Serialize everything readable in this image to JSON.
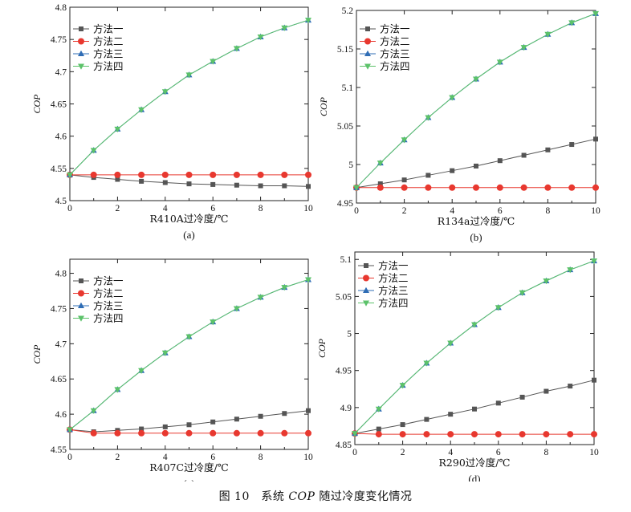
{
  "caption": {
    "prefix": "图 10　系统 ",
    "italic": "COP",
    "suffix": " 随过冷度变化情况"
  },
  "colors": {
    "m1": "#555555",
    "m2": "#e8382f",
    "m3": "#2f6db5",
    "m4": "#5cc26a",
    "axis": "#222222"
  },
  "legend_labels": [
    "方法一",
    "方法二",
    "方法三",
    "方法四"
  ],
  "chart_data": [
    {
      "type": "line",
      "panel_label": "(a)",
      "xlabel": "R410A过冷度/℃",
      "ylabel": "COP",
      "x": [
        0,
        1,
        2,
        3,
        4,
        5,
        6,
        7,
        8,
        9,
        10
      ],
      "xlim": [
        0,
        10
      ],
      "ylim": [
        4.5,
        4.8
      ],
      "xticks": [
        "0",
        "2",
        "4",
        "6",
        "8",
        "10"
      ],
      "yticks": [
        "4.5",
        "4.55",
        "4.6",
        "4.65",
        "4.7",
        "4.75",
        "4.8"
      ],
      "series": [
        {
          "name": "方法一",
          "marker": "square",
          "values": [
            4.54,
            4.536,
            4.533,
            4.53,
            4.528,
            4.526,
            4.525,
            4.524,
            4.523,
            4.523,
            4.522
          ]
        },
        {
          "name": "方法二",
          "marker": "circle",
          "values": [
            4.54,
            4.54,
            4.54,
            4.54,
            4.54,
            4.54,
            4.54,
            4.54,
            4.54,
            4.54,
            4.54
          ]
        },
        {
          "name": "方法三",
          "marker": "triangle-up",
          "values": [
            4.54,
            4.578,
            4.611,
            4.641,
            4.669,
            4.695,
            4.716,
            4.736,
            4.754,
            4.768,
            4.78
          ]
        },
        {
          "name": "方法四",
          "marker": "triangle-down",
          "values": [
            4.54,
            4.578,
            4.611,
            4.641,
            4.669,
            4.695,
            4.716,
            4.736,
            4.754,
            4.768,
            4.78
          ]
        }
      ]
    },
    {
      "type": "line",
      "panel_label": "(b)",
      "xlabel": "R134a过冷度/℃",
      "ylabel": "COP",
      "x": [
        0,
        1,
        2,
        3,
        4,
        5,
        6,
        7,
        8,
        9,
        10
      ],
      "xlim": [
        0,
        10
      ],
      "ylim": [
        4.95,
        5.2
      ],
      "xticks": [
        "0",
        "2",
        "4",
        "6",
        "8",
        "10"
      ],
      "yticks": [
        "4.95",
        "5",
        "5.05",
        "5.1",
        "5.15",
        "5.2"
      ],
      "series": [
        {
          "name": "方法一",
          "marker": "square",
          "values": [
            4.97,
            4.975,
            4.98,
            4.986,
            4.992,
            4.998,
            5.005,
            5.012,
            5.019,
            5.026,
            5.033
          ]
        },
        {
          "name": "方法二",
          "marker": "circle",
          "values": [
            4.97,
            4.97,
            4.97,
            4.97,
            4.97,
            4.97,
            4.97,
            4.97,
            4.97,
            4.97,
            4.97
          ]
        },
        {
          "name": "方法三",
          "marker": "triangle-up",
          "values": [
            4.97,
            5.002,
            5.032,
            5.061,
            5.087,
            5.111,
            5.133,
            5.152,
            5.169,
            5.184,
            5.196
          ]
        },
        {
          "name": "方法四",
          "marker": "triangle-down",
          "values": [
            4.97,
            5.002,
            5.032,
            5.061,
            5.087,
            5.111,
            5.133,
            5.152,
            5.169,
            5.184,
            5.196
          ]
        }
      ]
    },
    {
      "type": "line",
      "panel_label": "(c)",
      "xlabel": "R407C过冷度/℃",
      "ylabel": "COP",
      "x": [
        0,
        1,
        2,
        3,
        4,
        5,
        6,
        7,
        8,
        9,
        10
      ],
      "xlim": [
        0,
        10
      ],
      "ylim": [
        4.55,
        4.82
      ],
      "xticks": [
        "0",
        "2",
        "4",
        "6",
        "8",
        "10"
      ],
      "yticks": [
        "4.55",
        "4.6",
        "4.65",
        "4.7",
        "4.75",
        "4.8"
      ],
      "series": [
        {
          "name": "方法一",
          "marker": "square",
          "values": [
            4.578,
            4.575,
            4.577,
            4.579,
            4.582,
            4.585,
            4.589,
            4.593,
            4.597,
            4.601,
            4.605
          ]
        },
        {
          "name": "方法二",
          "marker": "circle",
          "values": [
            4.578,
            4.573,
            4.573,
            4.573,
            4.573,
            4.573,
            4.573,
            4.573,
            4.573,
            4.573,
            4.573
          ]
        },
        {
          "name": "方法三",
          "marker": "triangle-up",
          "values": [
            4.578,
            4.605,
            4.635,
            4.662,
            4.687,
            4.71,
            4.731,
            4.75,
            4.766,
            4.78,
            4.791
          ]
        },
        {
          "name": "方法四",
          "marker": "triangle-down",
          "values": [
            4.578,
            4.605,
            4.635,
            4.662,
            4.687,
            4.71,
            4.731,
            4.75,
            4.766,
            4.78,
            4.791
          ]
        }
      ]
    },
    {
      "type": "line",
      "panel_label": "(d)",
      "xlabel": "R290过冷度/℃",
      "ylabel": "COP",
      "x": [
        0,
        1,
        2,
        3,
        4,
        5,
        6,
        7,
        8,
        9,
        10
      ],
      "xlim": [
        0,
        10
      ],
      "ylim": [
        4.85,
        5.11
      ],
      "xticks": [
        "0",
        "2",
        "4",
        "6",
        "8",
        "10"
      ],
      "yticks": [
        "4.85",
        "4.9",
        "4.95",
        "5",
        "5.05",
        "5.1"
      ],
      "series": [
        {
          "name": "方法一",
          "marker": "square",
          "values": [
            4.865,
            4.871,
            4.877,
            4.884,
            4.891,
            4.898,
            4.906,
            4.914,
            4.922,
            4.929,
            4.937
          ]
        },
        {
          "name": "方法二",
          "marker": "circle",
          "values": [
            4.865,
            4.864,
            4.864,
            4.864,
            4.864,
            4.864,
            4.864,
            4.864,
            4.864,
            4.864,
            4.864
          ]
        },
        {
          "name": "方法三",
          "marker": "triangle-up",
          "values": [
            4.865,
            4.898,
            4.93,
            4.96,
            4.987,
            5.012,
            5.035,
            5.055,
            5.071,
            5.086,
            5.098
          ]
        },
        {
          "name": "方法四",
          "marker": "triangle-down",
          "values": [
            4.865,
            4.898,
            4.93,
            4.96,
            4.987,
            5.012,
            5.035,
            5.055,
            5.071,
            5.086,
            5.098
          ]
        }
      ]
    }
  ]
}
